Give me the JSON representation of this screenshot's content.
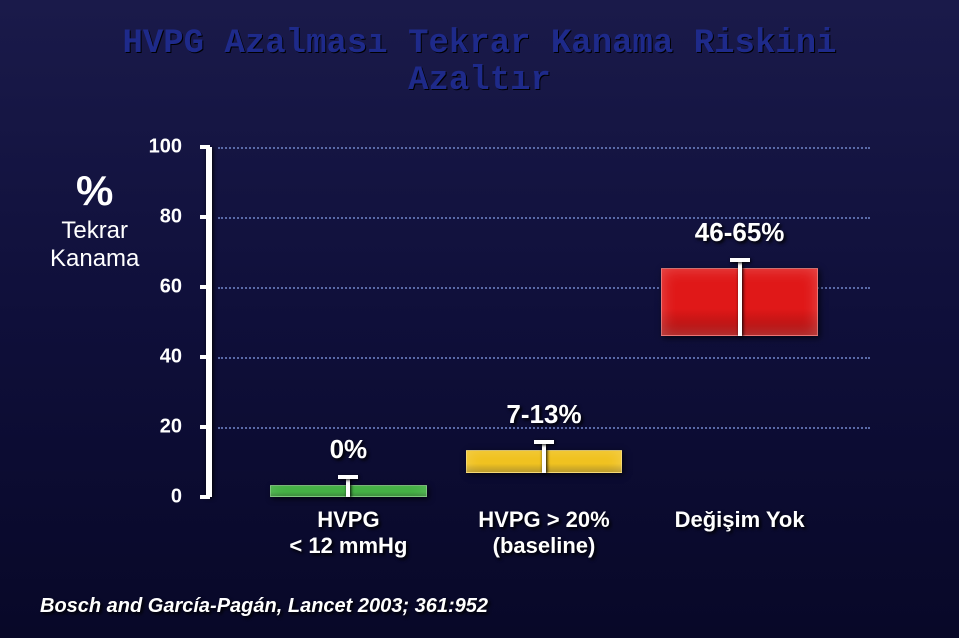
{
  "title": {
    "line1": "HVPG Azalması Tekrar Kanama Riskini",
    "line2": "Azaltır",
    "fontsize": 34,
    "color": "#1e2a8a"
  },
  "ylabel": {
    "percent": "%",
    "percent_fontsize": 42,
    "text": "Tekrar\nKanama",
    "text_fontsize": 24,
    "color": "#ffffff"
  },
  "chart": {
    "type": "bar",
    "ylim": [
      0,
      100
    ],
    "ytick_step": 20,
    "yticks": [
      "0",
      "20",
      "40",
      "60",
      "80",
      "100"
    ],
    "tick_fontsize": 20,
    "axis_color": "#ffffff",
    "grid_color": "#5a6aa8",
    "background": "transparent",
    "value_label_fontsize": 26,
    "cat_label_fontsize": 22,
    "bars": [
      {
        "category_lines": [
          "HVPG",
          "< 12 mmHg"
        ],
        "value_label": "0%",
        "low": 0,
        "high": 3,
        "fill": "#2aa52a",
        "slot_left_pct": 8,
        "slot_width_pct": 24
      },
      {
        "category_lines": [
          "HVPG > 20%",
          "(baseline)"
        ],
        "value_label": "7-13%",
        "low": 7,
        "high": 13,
        "fill": "#f0c018",
        "slot_left_pct": 38,
        "slot_width_pct": 24
      },
      {
        "category_lines": [
          "Değişim Yok"
        ],
        "value_label": "46-65%",
        "low": 46,
        "high": 65,
        "fill": "#e01818",
        "slot_left_pct": 68,
        "slot_width_pct": 24
      }
    ]
  },
  "citation": {
    "text": "Bosch and García-Pagán, Lancet 2003; 361:952",
    "fontsize": 20,
    "color": "#ffffff"
  }
}
